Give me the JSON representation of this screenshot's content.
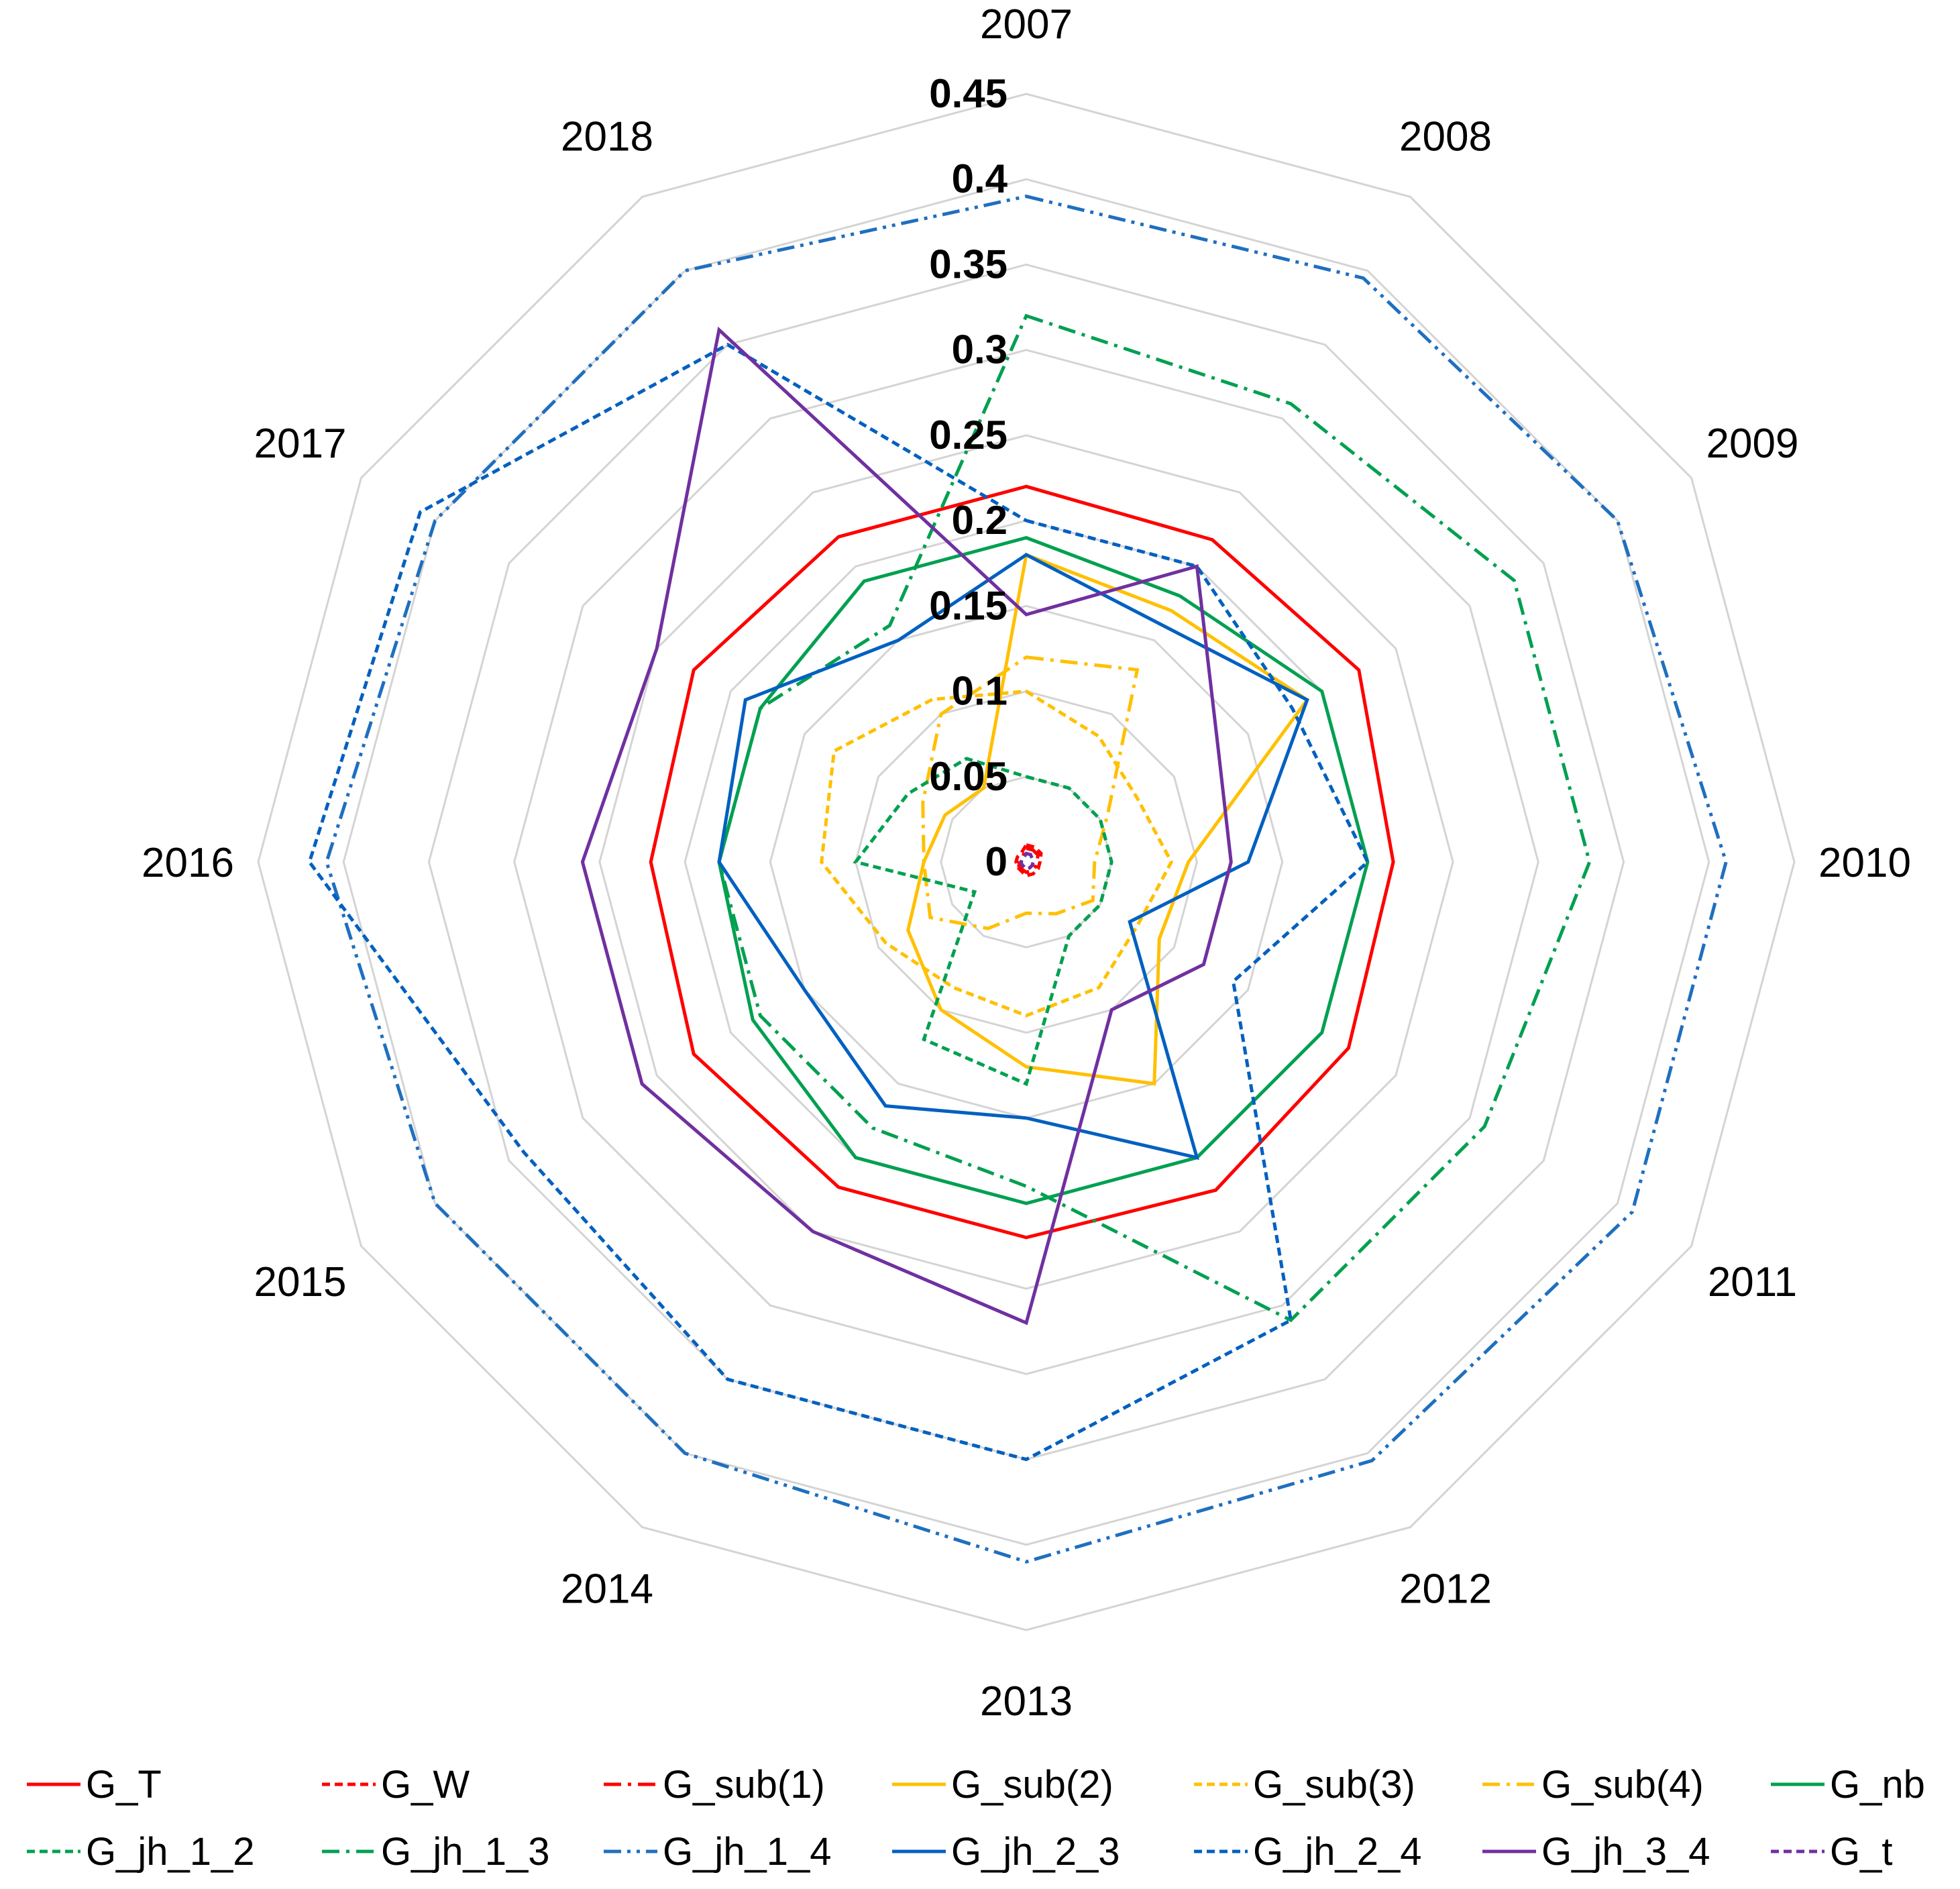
{
  "chart_data": {
    "type": "radar",
    "title": "",
    "categories": [
      "2007",
      "2008",
      "2009",
      "2010",
      "2011",
      "2012",
      "2013",
      "2014",
      "2015",
      "2016",
      "2017",
      "2018"
    ],
    "rlim": [
      0,
      0.45
    ],
    "rticks": [
      0,
      0.05,
      0.1,
      0.15,
      0.2,
      0.25,
      0.3,
      0.35,
      0.4,
      0.45
    ],
    "rtick_labels": [
      "0",
      "0.05",
      "0.1",
      "0.15",
      "0.2",
      "0.25",
      "0.3",
      "0.35",
      "0.4",
      "0.45"
    ],
    "grid": true,
    "legend_position": "bottom",
    "series": [
      {
        "name": "G_T",
        "color": "#FF0000",
        "dash": "solid",
        "values": [
          0.22,
          0.218,
          0.225,
          0.215,
          0.218,
          0.222,
          0.22,
          0.22,
          0.225,
          0.22,
          0.225,
          0.22
        ]
      },
      {
        "name": "G_W",
        "color": "#FF0000",
        "dash": "dash",
        "values": [
          0.01,
          0.01,
          0.01,
          0.008,
          0.008,
          0.008,
          0.008,
          0.006,
          0.006,
          0.006,
          0.006,
          0.006
        ]
      },
      {
        "name": "G_sub(1)",
        "color": "#FF0000",
        "dash": "dashdot",
        "values": [
          0.008,
          0.008,
          0.008,
          0.006,
          0.006,
          0.006,
          0.006,
          0.005,
          0.005,
          0.004,
          0.004,
          0.004
        ]
      },
      {
        "name": "G_sub(2)",
        "color": "#FFC000",
        "dash": "solid",
        "values": [
          0.18,
          0.17,
          0.19,
          0.095,
          0.09,
          0.15,
          0.12,
          0.1,
          0.08,
          0.06,
          0.055,
          0.05
        ]
      },
      {
        "name": "G_sub(3)",
        "color": "#FFC000",
        "dash": "dash",
        "values": [
          0.1,
          0.085,
          0.075,
          0.085,
          0.075,
          0.085,
          0.09,
          0.085,
          0.095,
          0.12,
          0.13,
          0.11
        ]
      },
      {
        "name": "G_sub(4)",
        "color": "#FFC000",
        "dash": "dashdot",
        "values": [
          0.12,
          0.13,
          0.055,
          0.04,
          0.045,
          0.035,
          0.03,
          0.045,
          0.065,
          0.06,
          0.07,
          0.1
        ]
      },
      {
        "name": "G_nb",
        "color": "#00A050",
        "dash": "solid",
        "values": [
          0.19,
          0.18,
          0.2,
          0.2,
          0.2,
          0.2,
          0.2,
          0.2,
          0.185,
          0.18,
          0.18,
          0.19
        ]
      },
      {
        "name": "G_jh_1_2",
        "color": "#00A050",
        "dash": "dash",
        "values": [
          0.05,
          0.05,
          0.05,
          0.05,
          0.05,
          0.05,
          0.13,
          0.12,
          0.035,
          0.1,
          0.08,
          0.07
        ]
      },
      {
        "name": "G_jh_1_3",
        "color": "#00A050",
        "dash": "dashdot",
        "values": [
          0.32,
          0.31,
          0.33,
          0.33,
          0.31,
          0.31,
          0.19,
          0.18,
          0.18,
          0.18,
          0.18,
          0.16
        ]
      },
      {
        "name": "G_jh_1_4",
        "color": "#1F6FBF",
        "dash": "dashdotdot",
        "values": [
          0.39,
          0.395,
          0.4,
          0.41,
          0.41,
          0.405,
          0.41,
          0.4,
          0.4,
          0.41,
          0.4,
          0.4
        ]
      },
      {
        "name": "G_jh_2_3",
        "color": "#0060C0",
        "dash": "solid",
        "values": [
          0.18,
          0.16,
          0.19,
          0.13,
          0.07,
          0.2,
          0.15,
          0.165,
          0.15,
          0.18,
          0.19,
          0.15
        ]
      },
      {
        "name": "G_jh_2_4",
        "color": "#0060C0",
        "dash": "dash",
        "values": [
          0.2,
          0.2,
          0.18,
          0.2,
          0.14,
          0.31,
          0.35,
          0.35,
          0.34,
          0.42,
          0.41,
          0.35
        ]
      },
      {
        "name": "G_jh_3_4",
        "color": "#7030A0",
        "dash": "solid",
        "values": [
          0.145,
          0.2,
          0.13,
          0.12,
          0.12,
          0.1,
          0.27,
          0.25,
          0.26,
          0.26,
          0.25,
          0.36
        ]
      },
      {
        "name": "G_t",
        "color": "#7030A0",
        "dash": "dash",
        "values": [
          0.005,
          0.005,
          0.004,
          0.004,
          0.004,
          0.004,
          0.004,
          0.003,
          0.003,
          0.003,
          0.003,
          0.003
        ]
      }
    ]
  }
}
